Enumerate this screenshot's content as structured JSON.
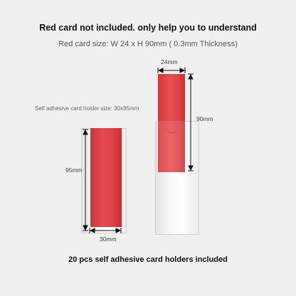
{
  "header": {
    "title": "Red card not included. only help you to understand",
    "subtitle": "Red card size: W 24 x H 90mm ( 0.3mm Thickness)"
  },
  "left_holder": {
    "label": "Self adhesive card holder size: 30x95mm",
    "height_label": "95mm",
    "width_label": "30mm"
  },
  "right_card": {
    "width_label": "24mm",
    "height_label": "90mm"
  },
  "footer": {
    "text": "20 pcs self adhesive card holders included"
  },
  "colors": {
    "red_card": "#e04448",
    "background": "#f0f0f0",
    "holder": "#ffffff"
  }
}
